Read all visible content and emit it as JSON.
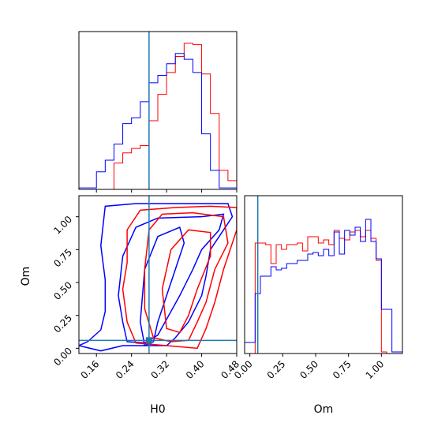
{
  "colors": {
    "red": "#ff0000",
    "blue": "#0000ff",
    "truth": "#1f77b4"
  },
  "truth": {
    "H0": 0.28,
    "Om": 0.06
  },
  "chart_data": [
    {
      "panel": "H0-marginal",
      "type": "histogram",
      "xlim": [
        0.12,
        0.48
      ],
      "bin_edges": [
        0.12,
        0.14,
        0.16,
        0.18,
        0.2,
        0.22,
        0.24,
        0.26,
        0.28,
        0.3,
        0.32,
        0.34,
        0.36,
        0.38,
        0.4,
        0.42,
        0.44,
        0.46,
        0.48
      ],
      "series": [
        {
          "color": "red",
          "counts": [
            0,
            0,
            0,
            0,
            0.18,
            0.25,
            0.28,
            0.3,
            0.47,
            0.65,
            0.8,
            0.91,
            1.0,
            0.99,
            0.79,
            0.52,
            0.13,
            0.06
          ]
        },
        {
          "color": "blue",
          "counts": [
            0.01,
            0.01,
            0.12,
            0.2,
            0.31,
            0.45,
            0.49,
            0.6,
            0.73,
            0.78,
            0.86,
            0.93,
            0.89,
            0.8,
            0.38,
            0.13,
            0.01,
            0.01
          ]
        }
      ]
    },
    {
      "panel": "Om-marginal",
      "type": "histogram",
      "xlabel": "Om",
      "xlim": [
        -0.04,
        1.16
      ],
      "xticks": [
        "0.00",
        "0.25",
        "0.50",
        "0.75",
        "1.00"
      ],
      "bin_edges": [
        -0.04,
        0.0,
        0.04,
        0.08,
        0.12,
        0.16,
        0.2,
        0.24,
        0.28,
        0.32,
        0.36,
        0.4,
        0.44,
        0.48,
        0.52,
        0.56,
        0.6,
        0.64,
        0.68,
        0.72,
        0.76,
        0.8,
        0.84,
        0.88,
        0.92,
        0.96,
        1.0,
        1.04,
        1.08,
        1.12,
        1.16
      ],
      "series": [
        {
          "color": "red",
          "counts": [
            0,
            0,
            0.7,
            0.7,
            0.69,
            0.57,
            0.69,
            0.66,
            0.69,
            0.69,
            0.7,
            0.65,
            0.74,
            0.74,
            0.7,
            0.72,
            0.69,
            0.78,
            0.73,
            0.72,
            0.77,
            0.78,
            0.74,
            0.78,
            0.73,
            0.59,
            0.01,
            0,
            0,
            0
          ]
        },
        {
          "color": "blue",
          "counts": [
            0.07,
            0.07,
            0.38,
            0.49,
            0.49,
            0.55,
            0.53,
            0.54,
            0.57,
            0.57,
            0.59,
            0.59,
            0.63,
            0.64,
            0.62,
            0.66,
            0.62,
            0.77,
            0.63,
            0.78,
            0.75,
            0.8,
            0.71,
            0.85,
            0.71,
            0.6,
            0.28,
            0.28,
            0.01,
            0.01
          ]
        }
      ]
    },
    {
      "panel": "joint",
      "type": "contour",
      "xlabel": "H0",
      "ylabel": "Om",
      "xlim": [
        0.12,
        0.48
      ],
      "ylim": [
        -0.04,
        1.16
      ],
      "xticks": [
        "0.16",
        "0.24",
        "0.32",
        "0.40",
        "0.48"
      ],
      "yticks": [
        "0.00",
        "0.25",
        "0.50",
        "0.75",
        "1.00"
      ],
      "contours": [
        {
          "color": "blue",
          "points": [
            [
              0.14,
              0.05
            ],
            [
              0.17,
              0.14
            ],
            [
              0.18,
              0.28
            ],
            [
              0.18,
              0.52
            ],
            [
              0.17,
              0.78
            ],
            [
              0.18,
              1.08
            ],
            [
              0.25,
              1.1
            ],
            [
              0.36,
              1.1
            ],
            [
              0.46,
              1.1
            ],
            [
              0.47,
              1.0
            ],
            [
              0.45,
              0.9
            ],
            [
              0.42,
              0.75
            ],
            [
              0.41,
              0.55
            ],
            [
              0.4,
              0.4
            ],
            [
              0.37,
              0.2
            ],
            [
              0.34,
              0.08
            ],
            [
              0.32,
              0.02
            ],
            [
              0.22,
              0.02
            ],
            [
              0.17,
              -0.02
            ],
            [
              0.12,
              0.02
            ]
          ]
        },
        {
          "color": "blue",
          "points": [
            [
              0.23,
              0.05
            ],
            [
              0.22,
              0.2
            ],
            [
              0.21,
              0.4
            ],
            [
              0.22,
              0.7
            ],
            [
              0.25,
              0.92
            ],
            [
              0.3,
              0.99
            ],
            [
              0.4,
              1.0
            ],
            [
              0.45,
              1.02
            ],
            [
              0.44,
              0.9
            ],
            [
              0.4,
              0.75
            ],
            [
              0.38,
              0.6
            ],
            [
              0.35,
              0.4
            ],
            [
              0.32,
              0.22
            ],
            [
              0.3,
              0.1
            ],
            [
              0.27,
              0.04
            ]
          ]
        },
        {
          "color": "blue",
          "points": [
            [
              0.27,
              0.02
            ],
            [
              0.26,
              0.2
            ],
            [
              0.27,
              0.6
            ],
            [
              0.3,
              0.85
            ],
            [
              0.35,
              0.92
            ],
            [
              0.36,
              0.8
            ],
            [
              0.34,
              0.6
            ],
            [
              0.32,
              0.4
            ],
            [
              0.3,
              0.2
            ],
            [
              0.29,
              0.05
            ]
          ]
        },
        {
          "color": "red",
          "points": [
            [
              0.25,
              0.04
            ],
            [
              0.23,
              0.2
            ],
            [
              0.22,
              0.45
            ],
            [
              0.23,
              0.65
            ],
            [
              0.23,
              0.9
            ],
            [
              0.26,
              1.05
            ],
            [
              0.34,
              1.07
            ],
            [
              0.42,
              1.08
            ],
            [
              0.48,
              1.07
            ],
            [
              0.48,
              0.9
            ],
            [
              0.45,
              0.6
            ],
            [
              0.43,
              0.35
            ],
            [
              0.41,
              0.15
            ],
            [
              0.39,
              0.0
            ],
            [
              0.32,
              0.02
            ]
          ]
        },
        {
          "color": "red",
          "points": [
            [
              0.29,
              0.08
            ],
            [
              0.27,
              0.3
            ],
            [
              0.27,
              0.6
            ],
            [
              0.28,
              0.9
            ],
            [
              0.31,
              1.02
            ],
            [
              0.38,
              1.03
            ],
            [
              0.45,
              1.0
            ],
            [
              0.46,
              0.8
            ],
            [
              0.43,
              0.6
            ],
            [
              0.41,
              0.35
            ],
            [
              0.39,
              0.2
            ],
            [
              0.37,
              0.06
            ],
            [
              0.33,
              0.05
            ]
          ]
        },
        {
          "color": "red",
          "points": [
            [
              0.32,
              0.15
            ],
            [
              0.31,
              0.45
            ],
            [
              0.33,
              0.75
            ],
            [
              0.37,
              0.9
            ],
            [
              0.42,
              0.88
            ],
            [
              0.42,
              0.7
            ],
            [
              0.39,
              0.45
            ],
            [
              0.37,
              0.25
            ],
            [
              0.35,
              0.12
            ]
          ]
        }
      ]
    }
  ]
}
